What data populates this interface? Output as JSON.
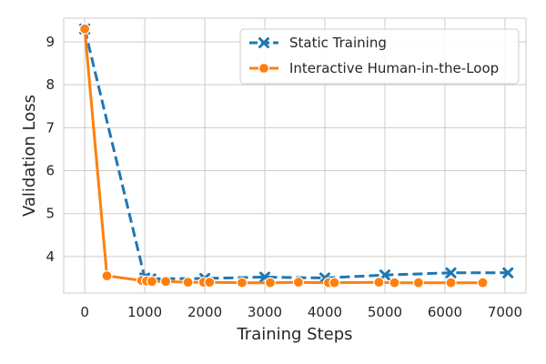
{
  "chart_data": {
    "type": "line",
    "title": "",
    "xlabel": "Training Steps",
    "ylabel": "Validation Loss",
    "xlim": [
      -350,
      7350
    ],
    "ylim": [
      3.15,
      9.55
    ],
    "xticks": [
      0,
      1000,
      2000,
      3000,
      4000,
      5000,
      6000,
      7000
    ],
    "yticks": [
      4,
      5,
      6,
      7,
      8,
      9
    ],
    "grid": true,
    "legend_position": "top-right",
    "series": [
      {
        "name": "Static Training",
        "color": "#1f77b4",
        "line_style": "dashed",
        "marker": "x",
        "x": [
          0,
          1000,
          1100,
          2000,
          3000,
          4000,
          5000,
          6100,
          7050
        ],
        "y": [
          9.3,
          3.5,
          3.48,
          3.49,
          3.52,
          3.5,
          3.57,
          3.62,
          3.62
        ]
      },
      {
        "name": "Interactive Human-in-the-Loop",
        "color": "#ff7f0e",
        "line_style": "solid",
        "marker": "circle",
        "x": [
          0,
          370,
          950,
          1030,
          1120,
          1350,
          1720,
          1980,
          2080,
          2620,
          3090,
          3560,
          4060,
          4160,
          4900,
          5160,
          5560,
          6100,
          6630
        ],
        "y": [
          9.3,
          3.55,
          3.44,
          3.43,
          3.42,
          3.42,
          3.4,
          3.4,
          3.4,
          3.39,
          3.39,
          3.4,
          3.39,
          3.39,
          3.4,
          3.39,
          3.39,
          3.39,
          3.39
        ]
      }
    ]
  }
}
